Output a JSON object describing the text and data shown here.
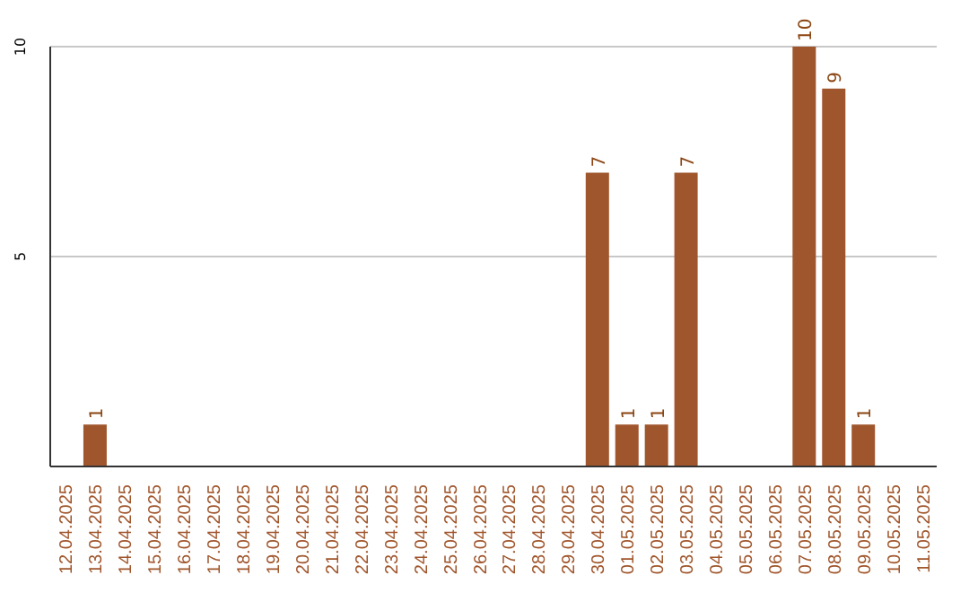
{
  "chart_data": {
    "type": "bar",
    "categories": [
      "12.04.2025",
      "13.04.2025",
      "14.04.2025",
      "15.04.2025",
      "16.04.2025",
      "17.04.2025",
      "18.04.2025",
      "19.04.2025",
      "20.04.2025",
      "21.04.2025",
      "22.04.2025",
      "23.04.2025",
      "24.04.2025",
      "25.04.2025",
      "26.04.2025",
      "27.04.2025",
      "28.04.2025",
      "29.04.2025",
      "30.04.2025",
      "01.05.2025",
      "02.05.2025",
      "03.05.2025",
      "04.05.2025",
      "05.05.2025",
      "06.05.2025",
      "07.05.2025",
      "08.05.2025",
      "09.05.2025",
      "10.05.2025",
      "11.05.2025"
    ],
    "values": [
      0,
      1,
      0,
      0,
      0,
      0,
      0,
      0,
      0,
      0,
      0,
      0,
      0,
      0,
      0,
      0,
      0,
      0,
      7,
      1,
      1,
      7,
      0,
      0,
      0,
      10,
      9,
      1,
      0,
      0
    ],
    "value_labels": [
      null,
      "1",
      null,
      null,
      null,
      null,
      null,
      null,
      null,
      null,
      null,
      null,
      null,
      null,
      null,
      null,
      null,
      null,
      "7",
      "1",
      "1",
      "7",
      null,
      null,
      null,
      "10",
      "9",
      "1",
      null,
      null
    ],
    "color": "#a0562c",
    "ylim": [
      0,
      10
    ],
    "yticks": [
      5,
      10
    ],
    "grid": "y"
  }
}
